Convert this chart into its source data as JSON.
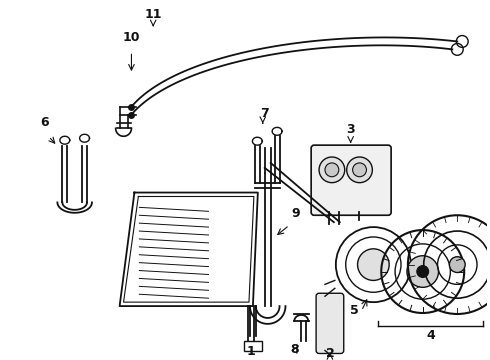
{
  "background_color": "#ffffff",
  "line_color": "#111111",
  "figsize": [
    4.9,
    3.6
  ],
  "dpi": 100
}
